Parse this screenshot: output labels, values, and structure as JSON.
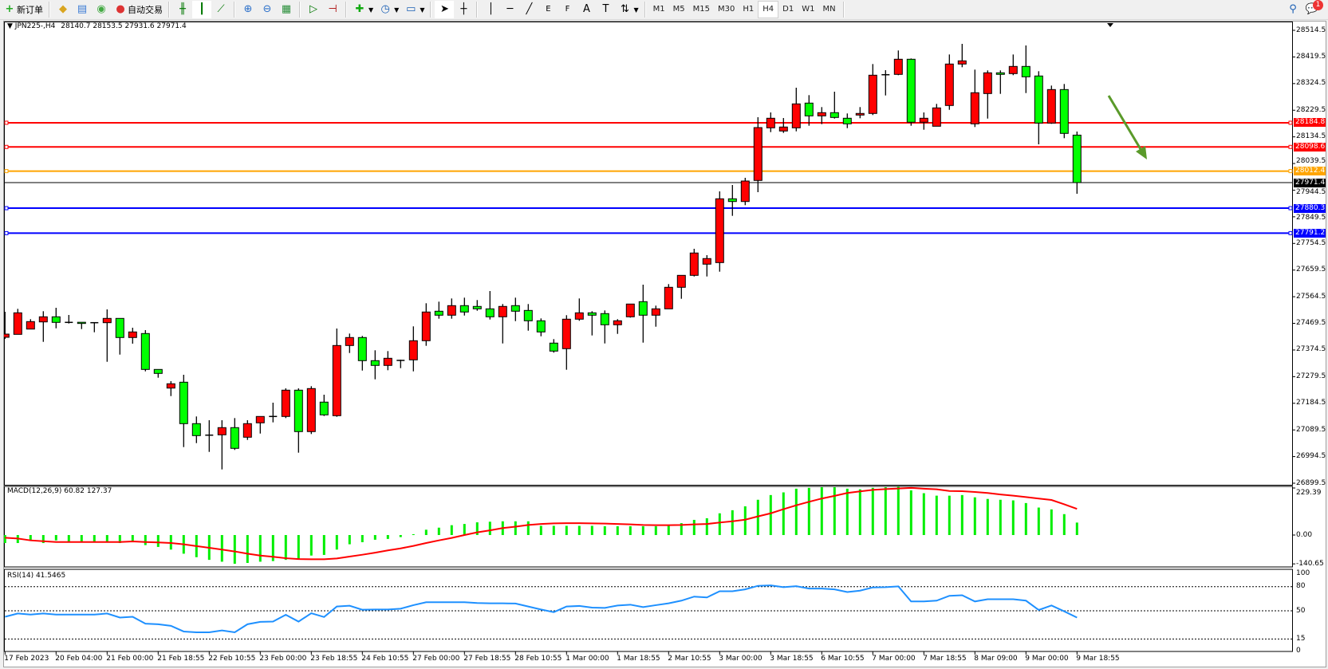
{
  "toolbar": {
    "new_order": "新订单",
    "auto_trading": "自动交易",
    "timeframes": [
      "M1",
      "M5",
      "M15",
      "M30",
      "H1",
      "H4",
      "D1",
      "W1",
      "MN"
    ],
    "active_timeframe": "H4",
    "notification_count": "1",
    "tool_e": "E",
    "tool_f": "F",
    "tool_text": "A",
    "tool_label": "T"
  },
  "chart": {
    "symbol_title": "JPN225-,H4",
    "ohlc_text": "28140.7 28153.5 27931.6 27971.4"
  },
  "chart_data": {
    "type": "candlestick",
    "symbol": "JPN225-",
    "timeframe": "H4",
    "ylim": [
      26899.5,
      28514.5
    ],
    "grid": false,
    "colors": {
      "bull": "#ff0000",
      "bear": "#00ff00",
      "outline": "#000000",
      "macd_histogram": "#00ee00",
      "macd_signal": "#ff0000",
      "rsi": "#1e90ff"
    },
    "price_ticks": [
      "28514.5",
      "28419.5",
      "28324.5",
      "28229.5",
      "28134.5",
      "28039.5",
      "27944.5",
      "27849.5",
      "27754.5",
      "27659.5",
      "27564.5",
      "27469.5",
      "27374.5",
      "27279.5",
      "27184.5",
      "27089.5",
      "26994.5",
      "26899.5"
    ],
    "time_labels": [
      "17 Feb 2023",
      "20 Feb 04:00",
      "21 Feb 00:00",
      "21 Feb 18:55",
      "22 Feb 10:55",
      "23 Feb 00:00",
      "23 Feb 18:55",
      "24 Feb 10:55",
      "27 Feb 00:00",
      "27 Feb 18:55",
      "28 Feb 10:55",
      "1 Mar 00:00",
      "1 Mar 18:55",
      "2 Mar 10:55",
      "3 Mar 00:00",
      "3 Mar 18:55",
      "6 Mar 10:55",
      "7 Mar 00:00",
      "7 Mar 18:55",
      "8 Mar 09:00",
      "9 Mar 00:00",
      "9 Mar 18:55"
    ],
    "candles_ohlc": [
      [
        27419.8,
        27510.8,
        27414.1,
        27431.2
      ],
      [
        27430.3,
        27521.3,
        27430.3,
        27507.1
      ],
      [
        27449.1,
        27484.4,
        27449.1,
        27475.8
      ],
      [
        27474.7,
        27512.8,
        27403.6,
        27492.9
      ],
      [
        27492.9,
        27525.0,
        27451.9,
        27473.0
      ],
      [
        27473.0,
        27499.4,
        27469.0,
        27473.0
      ],
      [
        27473.4,
        27473.4,
        27449.1,
        27472.8
      ],
      [
        27471.9,
        27472.5,
        27437.8,
        27471.9
      ],
      [
        27471.9,
        27519.3,
        27332.5,
        27487.2
      ],
      [
        27487.2,
        27487.2,
        27358.1,
        27419.0
      ],
      [
        27419.0,
        27453.9,
        27397.1,
        27438.9
      ],
      [
        27433.2,
        27445.4,
        27298.4,
        27305.2
      ],
      [
        27305.2,
        27305.2,
        27275.7,
        27291.0
      ],
      [
        27238.7,
        27263.4,
        27210.2,
        27254.1
      ],
      [
        27259.7,
        27286.2,
        27028.3,
        27111.9
      ],
      [
        27111.9,
        27137.5,
        27042.5,
        27069.2
      ],
      [
        27070.9,
        27124.1,
        27011.2,
        27070.9
      ],
      [
        27072.1,
        27124.1,
        26948.7,
        27097.7
      ],
      [
        27097.7,
        27131.8,
        27018.1,
        27023.8
      ],
      [
        27063.5,
        27124.1,
        27053.9,
        27111.9
      ],
      [
        27114.8,
        27137.5,
        27076.6,
        27137.5
      ],
      [
        27137.5,
        27186.7,
        27116.5,
        27137.5
      ],
      [
        27137.5,
        27237.8,
        27131.8,
        27231.3
      ],
      [
        27231.3,
        27237.8,
        27008.4,
        27083.5
      ],
      [
        27083.5,
        27245.5,
        27074.9,
        27237.0
      ],
      [
        27188.7,
        27215.1,
        27139.2,
        27143.2
      ],
      [
        27140.3,
        27451.1,
        27136.3,
        27390.5
      ],
      [
        27390.5,
        27433.1,
        27363.8,
        27419.0
      ],
      [
        27419.0,
        27424.7,
        27301.2,
        27336.5
      ],
      [
        27336.5,
        27373.5,
        27270.0,
        27319.5
      ],
      [
        27319.5,
        27370.6,
        27302.4,
        27345.0
      ],
      [
        27337.4,
        27340.0,
        27309.8,
        27337.4
      ],
      [
        27339.4,
        27458.8,
        27298.4,
        27407.6
      ],
      [
        27407.6,
        27541.2,
        27389.4,
        27510.0
      ],
      [
        27512.8,
        27546.9,
        27486.1,
        27498.6
      ],
      [
        27498.6,
        27558.3,
        27486.1,
        27532.7
      ],
      [
        27532.7,
        27561.1,
        27497.4,
        27510.0
      ],
      [
        27529.9,
        27552.6,
        27514.5,
        27521.3
      ],
      [
        27521.3,
        27584.7,
        27483.2,
        27492.9
      ],
      [
        27492.9,
        27538.4,
        27397.9,
        27529.9
      ],
      [
        27532.7,
        27561.1,
        27477.5,
        27512.8
      ],
      [
        27515.6,
        27538.4,
        27443.4,
        27478.7
      ],
      [
        27478.7,
        27487.2,
        27423.5,
        27438.9
      ],
      [
        27399.1,
        27413.3,
        27365.0,
        27370.6
      ],
      [
        27379.2,
        27498.6,
        27304.1,
        27484.4
      ],
      [
        27484.4,
        27558.3,
        27478.7,
        27507.1
      ],
      [
        27507.1,
        27512.8,
        27426.4,
        27498.6
      ],
      [
        27504.3,
        27515.6,
        27397.9,
        27464.5
      ],
      [
        27464.5,
        27484.4,
        27432.0,
        27478.7
      ],
      [
        27492.9,
        27539.2,
        27490.0,
        27538.4
      ],
      [
        27546.9,
        27607.5,
        27400.8,
        27498.6
      ],
      [
        27498.6,
        27532.7,
        27457.6,
        27521.3
      ],
      [
        27521.3,
        27609.5,
        27521.3,
        27598.1
      ],
      [
        27598.1,
        27640.7,
        27557.2,
        27640.7
      ],
      [
        27640.7,
        27735.4,
        27636.7,
        27720.4
      ],
      [
        27680.6,
        27712.7,
        27636.7,
        27700.5
      ],
      [
        27686.2,
        27940.1,
        27653.8,
        27913.7
      ],
      [
        27913.7,
        27962.9,
        27852.9,
        27904.0
      ],
      [
        27904.0,
        27988.5,
        27891.0,
        27977.1
      ],
      [
        27979.1,
        28204.6,
        27937.3,
        28167.6
      ],
      [
        28166.7,
        28221.6,
        28151.4,
        28200.9
      ],
      [
        28155.4,
        28201.7,
        28148.6,
        28169.6
      ],
      [
        28166.7,
        28309.8,
        28154.3,
        28252.1
      ],
      [
        28254.9,
        28283.3,
        28174.2,
        28209.4
      ],
      [
        28209.4,
        28240.7,
        28179.8,
        28220.8
      ],
      [
        28220.8,
        28295.6,
        28199.7,
        28203.7
      ],
      [
        28200.9,
        28218.0,
        28165.6,
        28181.0
      ],
      [
        28212.3,
        28240.7,
        28200.9,
        28218.0
      ],
      [
        28218.0,
        28394.2,
        28212.3,
        28354.4
      ],
      [
        28356.1,
        28372.3,
        28282.2,
        28356.1
      ],
      [
        28357.3,
        28442.6,
        28354.4,
        28411.3
      ],
      [
        28411.3,
        28414.1,
        28174.2,
        28186.7
      ],
      [
        28186.7,
        28221.6,
        28160.0,
        28200.9
      ],
      [
        28172.4,
        28252.1,
        28172.4,
        28237.8
      ],
      [
        28246.4,
        28428.3,
        28231.0,
        28394.2
      ],
      [
        28394.2,
        28466.2,
        28382.8,
        28405.6
      ],
      [
        28181.0,
        28374.3,
        28169.6,
        28291.9
      ],
      [
        28289.0,
        28371.5,
        28199.7,
        28362.9
      ],
      [
        28362.9,
        28371.5,
        28287.9,
        28357.3
      ],
      [
        28360.1,
        28428.3,
        28354.4,
        28385.7
      ],
      [
        28385.7,
        28460.5,
        28290.7,
        28348.7
      ],
      [
        28351.6,
        28368.6,
        28107.9,
        28183.8
      ],
      [
        28183.8,
        28317.4,
        28181.0,
        28303.2
      ],
      [
        28303.2,
        28323.1,
        28129.8,
        28146.9
      ],
      [
        28140.7,
        28153.5,
        27931.6,
        27971.4
      ]
    ],
    "current_price": {
      "value": 27971.4,
      "label": "27971.4",
      "color": "#000000"
    },
    "horizontal_lines": [
      {
        "value": 28184.8,
        "label": "28184.8",
        "color": "#ff0000"
      },
      {
        "value": 28098.6,
        "label": "28098.6",
        "color": "#ff0000"
      },
      {
        "value": 28012.4,
        "label": "28012.4",
        "color": "#ffa500"
      },
      {
        "value": 27880.3,
        "label": "27880.3",
        "color": "#0000ff"
      },
      {
        "value": 27791.2,
        "label": "27791.2",
        "color": "#0000ff"
      }
    ],
    "annotation_arrow": {
      "color": "#5a9a2a",
      "direction": "down-right"
    },
    "macd": {
      "label": "MACD(12,26,9) 60.82 127.37",
      "ylim": [
        -140.65,
        229.39
      ],
      "ticks": [
        "229.39",
        "0.00",
        "-140.65"
      ],
      "histogram": [
        -39,
        -39,
        -29,
        -39,
        -26,
        -32,
        -32,
        -32,
        -32,
        -39,
        -32,
        -49,
        -58,
        -71,
        -91,
        -108,
        -121,
        -130,
        -140,
        -136,
        -130,
        -127,
        -121,
        -117,
        -100,
        -97,
        -71,
        -45,
        -35,
        -23,
        -19,
        -10,
        4,
        26,
        36,
        48,
        54,
        62,
        65,
        67,
        67,
        67,
        45,
        45,
        45,
        45,
        45,
        43,
        43,
        43,
        43,
        43,
        45,
        58,
        74,
        82,
        106,
        121,
        140,
        172,
        195,
        208,
        226,
        230,
        233,
        233,
        226,
        223,
        230,
        233,
        236,
        218,
        204,
        192,
        192,
        195,
        184,
        176,
        172,
        169,
        156,
        134,
        125,
        102,
        60.82
      ],
      "signal": [
        -13,
        -17,
        -26,
        -30,
        -34,
        -34,
        -34,
        -34,
        -34,
        -34,
        -31,
        -34,
        -36,
        -39,
        -45,
        -54,
        -62,
        -71,
        -80,
        -91,
        -100,
        -106,
        -113,
        -117,
        -118,
        -118,
        -114,
        -105,
        -96,
        -86,
        -75,
        -65,
        -53,
        -39,
        -26,
        -14,
        0,
        13,
        23,
        34,
        41,
        49,
        54,
        57,
        58,
        58,
        57,
        56,
        54,
        52,
        49,
        48,
        48,
        49,
        52,
        54,
        61,
        67,
        75,
        91,
        106,
        126,
        145,
        162,
        178,
        191,
        205,
        213,
        220,
        224,
        227,
        230,
        226,
        223,
        215,
        214,
        210,
        205,
        198,
        192,
        185,
        178,
        171,
        150,
        127.37
      ]
    },
    "rsi": {
      "label": "RSI(14) 41.5465",
      "ylim": [
        0,
        100
      ],
      "levels": [
        80,
        50,
        15
      ],
      "ticks": [
        "100",
        "80",
        "50",
        "15",
        "0"
      ],
      "values": [
        42.6,
        46.6,
        45.3,
        46.6,
        45.3,
        45.3,
        45.3,
        45.3,
        46.6,
        41.6,
        42.6,
        34,
        33.3,
        31.3,
        24.3,
        23.3,
        23.3,
        25.6,
        23.3,
        33.3,
        36.3,
        36.6,
        45,
        36.6,
        47,
        42.3,
        55.3,
        56.3,
        51.3,
        51.6,
        51.6,
        52.6,
        57,
        60.6,
        60.6,
        60.6,
        60.6,
        59.6,
        59.3,
        59.3,
        59,
        55.3,
        51.6,
        48.3,
        55.3,
        56,
        54,
        53.6,
        56.6,
        57.6,
        54.6,
        57,
        59.3,
        62.6,
        67.6,
        66.6,
        74.3,
        74.3,
        76.6,
        81,
        81.6,
        79.3,
        80.6,
        77.6,
        77.6,
        76.6,
        73.3,
        75,
        79,
        79.3,
        80.3,
        61.6,
        61.6,
        62.6,
        68.6,
        69.3,
        61.6,
        64.3,
        64.3,
        64.3,
        62.6,
        51,
        56.6,
        49.3,
        41.5465
      ]
    }
  }
}
